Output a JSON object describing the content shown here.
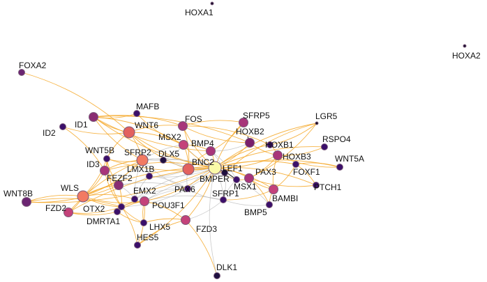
{
  "graph": {
    "edge_colors": {
      "primary": "#f5a623",
      "secondary": "#bdbdbd"
    },
    "nodes": [
      {
        "id": "HOXA1",
        "label": "HOXA1",
        "color": "#1a0c2e",
        "size": "tiny"
      },
      {
        "id": "HOXA2",
        "label": "HOXA2",
        "color": "#1a0c2e",
        "size": "tiny"
      },
      {
        "id": "FOXA2",
        "label": "FOXA2",
        "color": "#6b2572",
        "size": "small"
      },
      {
        "id": "MAFB",
        "label": "MAFB",
        "color": "#3b0f6a",
        "size": "small"
      },
      {
        "id": "ID1",
        "label": "ID1",
        "color": "#8a2d72",
        "size": "medium"
      },
      {
        "id": "ID2",
        "label": "ID2",
        "color": "#3b0f6a",
        "size": "small"
      },
      {
        "id": "WNT6",
        "label": "WNT6",
        "color": "#e3625e",
        "size": "large"
      },
      {
        "id": "FOS",
        "label": "FOS",
        "color": "#a8357a",
        "size": "medium"
      },
      {
        "id": "SFRP5",
        "label": "SFRP5",
        "color": "#a8357a",
        "size": "medium"
      },
      {
        "id": "LGR5",
        "label": "LGR5",
        "color": "#0d0820",
        "size": "tiny"
      },
      {
        "id": "WNT5B",
        "label": "WNT5B",
        "color": "#3b0f6a",
        "size": "small"
      },
      {
        "id": "MSX2",
        "label": "MSX2",
        "color": "#c4427a",
        "size": "medium"
      },
      {
        "id": "HOXB2",
        "label": "HOXB2",
        "color": "#7a1f6a",
        "size": "medium"
      },
      {
        "id": "RSPO4",
        "label": "RSPO4",
        "color": "#3b0f6a",
        "size": "small"
      },
      {
        "id": "SFRP2",
        "label": "SFRP2",
        "color": "#f27a62",
        "size": "large"
      },
      {
        "id": "BMP4",
        "label": "BMP4",
        "color": "#a8357a",
        "size": "medium"
      },
      {
        "id": "HOXB1",
        "label": "HOXB1",
        "color": "#3b0f6a",
        "size": "small"
      },
      {
        "id": "DLX5",
        "label": "DLX5",
        "color": "#1f0f3f",
        "size": "small"
      },
      {
        "id": "HOXB3",
        "label": "HOXB3",
        "color": "#a8357a",
        "size": "medium"
      },
      {
        "id": "WNT5A",
        "label": "WNT5A",
        "color": "#3b0f6a",
        "size": "small"
      },
      {
        "id": "ID3",
        "label": "ID3",
        "color": "#a8357a",
        "size": "medium"
      },
      {
        "id": "BNC2",
        "label": "BNC2",
        "color": "#e3625e",
        "size": "large"
      },
      {
        "id": "LEF1",
        "label": "LEF1",
        "color": "#fafaa8",
        "size": "xlarge"
      },
      {
        "id": "FOXF1",
        "label": "FOXF1",
        "color": "#3b0f6a",
        "size": "small"
      },
      {
        "id": "LMX1B",
        "label": "LMX1B",
        "color": "#3b0f6a",
        "size": "small"
      },
      {
        "id": "PAX3",
        "label": "PAX3",
        "color": "#a8357a",
        "size": "medium"
      },
      {
        "id": "FEZF2",
        "label": "FEZF2",
        "color": "#8a2d72",
        "size": "medium"
      },
      {
        "id": "BMPER",
        "label": "BMPER",
        "color": "#1f0f3f",
        "size": "small"
      },
      {
        "id": "PTCH1",
        "label": "PTCH1",
        "color": "#3b0f6a",
        "size": "small"
      },
      {
        "id": "PAX6",
        "label": "PAX6",
        "color": "#3b0f6a",
        "size": "small"
      },
      {
        "id": "MSX1",
        "label": "MSX1",
        "color": "#3b0f6a",
        "size": "small"
      },
      {
        "id": "WNT8B",
        "label": "WNT8B",
        "color": "#6b2572",
        "size": "medium"
      },
      {
        "id": "WLS",
        "label": "WLS",
        "color": "#f27a62",
        "size": "large"
      },
      {
        "id": "EMX2",
        "label": "EMX2",
        "color": "#3b0f6a",
        "size": "small"
      },
      {
        "id": "BAMBI",
        "label": "BAMBI",
        "color": "#c4427a",
        "size": "medium"
      },
      {
        "id": "FZD2",
        "label": "FZD2",
        "color": "#c4427a",
        "size": "medium"
      },
      {
        "id": "OTX2",
        "label": "OTX2",
        "color": "#3b0f6a",
        "size": "small"
      },
      {
        "id": "POU3F1",
        "label": "POU3F1",
        "color": "#c4427a",
        "size": "medium"
      },
      {
        "id": "SFRP1",
        "label": "SFRP1",
        "color": "#3b0f6a",
        "size": "small"
      },
      {
        "id": "BMP5",
        "label": "BMP5",
        "color": "#3b0f6a",
        "size": "small"
      },
      {
        "id": "DMRTA1",
        "label": "DMRTA1",
        "color": "#3b0f6a",
        "size": "small"
      },
      {
        "id": "LHX5",
        "label": "LHX5",
        "color": "#3b0f6a",
        "size": "small"
      },
      {
        "id": "FZD3",
        "label": "FZD3",
        "color": "#c4427a",
        "size": "medium"
      },
      {
        "id": "HES5",
        "label": "HES5",
        "color": "#3b0f6a",
        "size": "small"
      },
      {
        "id": "DLK1",
        "label": "DLK1",
        "color": "#1f0f3f",
        "size": "small"
      }
    ],
    "edges": [
      {
        "source": "FOXA2",
        "target": "WNT6",
        "kind": "primary"
      },
      {
        "source": "ID2",
        "target": "WNT6",
        "kind": "primary"
      },
      {
        "source": "ID2",
        "target": "ID3",
        "kind": "primary"
      },
      {
        "source": "ID1",
        "target": "WNT6",
        "kind": "primary"
      },
      {
        "source": "ID1",
        "target": "FOS",
        "kind": "primary"
      },
      {
        "source": "ID1",
        "target": "SFRP2",
        "kind": "primary"
      },
      {
        "source": "ID1",
        "target": "MSX2",
        "kind": "primary"
      },
      {
        "source": "ID1",
        "target": "BMP4",
        "kind": "primary"
      },
      {
        "source": "ID1",
        "target": "HOXB2",
        "kind": "primary"
      },
      {
        "source": "ID1",
        "target": "LEF1",
        "kind": "primary"
      },
      {
        "source": "MAFB",
        "target": "ID1",
        "kind": "primary"
      },
      {
        "source": "MAFB",
        "target": "MSX2",
        "kind": "primary"
      },
      {
        "source": "WNT6",
        "target": "FOS",
        "kind": "primary"
      },
      {
        "source": "WNT6",
        "target": "LEF1",
        "kind": "primary"
      },
      {
        "source": "WNT6",
        "target": "SFRP2",
        "kind": "primary"
      },
      {
        "source": "WNT6",
        "target": "WNT5B",
        "kind": "primary"
      },
      {
        "source": "WNT6",
        "target": "MSX2",
        "kind": "primary"
      },
      {
        "source": "WNT6",
        "target": "BNC2",
        "kind": "primary"
      },
      {
        "source": "FOS",
        "target": "SFRP5",
        "kind": "primary"
      },
      {
        "source": "FOS",
        "target": "HOXB2",
        "kind": "primary"
      },
      {
        "source": "FOS",
        "target": "BNC2",
        "kind": "primary"
      },
      {
        "source": "FOS",
        "target": "LEF1",
        "kind": "primary"
      },
      {
        "source": "FOS",
        "target": "HOXB1",
        "kind": "primary"
      },
      {
        "source": "SFRP5",
        "target": "LEF1",
        "kind": "primary"
      },
      {
        "source": "SFRP5",
        "target": "BMP4",
        "kind": "primary"
      },
      {
        "source": "LGR5",
        "target": "LEF1",
        "kind": "primary"
      },
      {
        "source": "LGR5",
        "target": "HOXB1",
        "kind": "primary"
      },
      {
        "source": "LGR5",
        "target": "BMPER",
        "kind": "primary"
      },
      {
        "source": "LGR5",
        "target": "PAX3",
        "kind": "primary"
      },
      {
        "source": "RSPO4",
        "target": "LEF1",
        "kind": "primary"
      },
      {
        "source": "RSPO4",
        "target": "HOXB3",
        "kind": "primary"
      },
      {
        "source": "WNT5A",
        "target": "LEF1",
        "kind": "primary"
      },
      {
        "source": "WNT5A",
        "target": "HOXB3",
        "kind": "primary"
      },
      {
        "source": "WNT5A",
        "target": "FOXF1",
        "kind": "primary"
      },
      {
        "source": "HOXB2",
        "target": "LEF1",
        "kind": "primary"
      },
      {
        "source": "HOXB2",
        "target": "HOXB3",
        "kind": "primary"
      },
      {
        "source": "HOXB1",
        "target": "HOXB3",
        "kind": "primary"
      },
      {
        "source": "HOXB1",
        "target": "LEF1",
        "kind": "primary"
      },
      {
        "source": "HOXB3",
        "target": "PAX3",
        "kind": "primary"
      },
      {
        "source": "HOXB3",
        "target": "BAMBI",
        "kind": "primary"
      },
      {
        "source": "FOXF1",
        "target": "PTCH1",
        "kind": "primary"
      },
      {
        "source": "FOXF1",
        "target": "LEF1",
        "kind": "primary"
      },
      {
        "source": "FOXF1",
        "target": "BAMBI",
        "kind": "primary"
      },
      {
        "source": "PTCH1",
        "target": "LEF1",
        "kind": "primary"
      },
      {
        "source": "PTCH1",
        "target": "PAX3",
        "kind": "primary"
      },
      {
        "source": "PAX3",
        "target": "LEF1",
        "kind": "primary"
      },
      {
        "source": "PAX3",
        "target": "MSX1",
        "kind": "primary"
      },
      {
        "source": "PAX3",
        "target": "BAMBI",
        "kind": "primary"
      },
      {
        "source": "PAX3",
        "target": "BMP5",
        "kind": "primary"
      },
      {
        "source": "BAMBI",
        "target": "LEF1",
        "kind": "primary"
      },
      {
        "source": "BAMBI",
        "target": "SFRP1",
        "kind": "primary"
      },
      {
        "source": "BAMBI",
        "target": "BMP5",
        "kind": "primary"
      },
      {
        "source": "BMP5",
        "target": "SFRP1",
        "kind": "secondary"
      },
      {
        "source": "BMP5",
        "target": "MSX1",
        "kind": "secondary"
      },
      {
        "source": "MSX1",
        "target": "LEF1",
        "kind": "primary"
      },
      {
        "source": "MSX1",
        "target": "SFRP1",
        "kind": "secondary"
      },
      {
        "source": "MSX1",
        "target": "MSX2",
        "kind": "secondary"
      },
      {
        "source": "MSX1",
        "target": "BMP4",
        "kind": "secondary"
      },
      {
        "source": "MSX2",
        "target": "BMP4",
        "kind": "primary"
      },
      {
        "source": "MSX2",
        "target": "LEF1",
        "kind": "primary"
      },
      {
        "source": "MSX2",
        "target": "BNC2",
        "kind": "primary"
      },
      {
        "source": "MSX2",
        "target": "SFRP2",
        "kind": "secondary"
      },
      {
        "source": "BMP4",
        "target": "LEF1",
        "kind": "primary"
      },
      {
        "source": "BMP4",
        "target": "BNC2",
        "kind": "primary"
      },
      {
        "source": "BMP4",
        "target": "BMPER",
        "kind": "secondary"
      },
      {
        "source": "BMP4",
        "target": "HOXB2",
        "kind": "secondary"
      },
      {
        "source": "BNC2",
        "target": "LEF1",
        "kind": "primary"
      },
      {
        "source": "BNC2",
        "target": "SFRP2",
        "kind": "secondary"
      },
      {
        "source": "BNC2",
        "target": "LMX1B",
        "kind": "secondary"
      },
      {
        "source": "BNC2",
        "target": "PAX6",
        "kind": "secondary"
      },
      {
        "source": "BNC2",
        "target": "BMPER",
        "kind": "secondary"
      },
      {
        "source": "BNC2",
        "target": "DLX5",
        "kind": "secondary"
      },
      {
        "source": "BMPER",
        "target": "LEF1",
        "kind": "primary"
      },
      {
        "source": "BMPER",
        "target": "PAX6",
        "kind": "secondary"
      },
      {
        "source": "BMPER",
        "target": "SFRP1",
        "kind": "secondary"
      },
      {
        "source": "DLX5",
        "target": "SFRP2",
        "kind": "secondary"
      },
      {
        "source": "DLX5",
        "target": "LEF1",
        "kind": "secondary"
      },
      {
        "source": "DLX5",
        "target": "MSX2",
        "kind": "secondary"
      },
      {
        "source": "SFRP2",
        "target": "LEF1",
        "kind": "secondary"
      },
      {
        "source": "SFRP2",
        "target": "ID3",
        "kind": "primary"
      },
      {
        "source": "SFRP2",
        "target": "WNT5B",
        "kind": "primary"
      },
      {
        "source": "SFRP2",
        "target": "FEZF2",
        "kind": "secondary"
      },
      {
        "source": "SFRP2",
        "target": "LMX1B",
        "kind": "secondary"
      },
      {
        "source": "SFRP2",
        "target": "EMX2",
        "kind": "secondary"
      },
      {
        "source": "SFRP2",
        "target": "WLS",
        "kind": "primary"
      },
      {
        "source": "SFRP2",
        "target": "PAX6",
        "kind": "secondary"
      },
      {
        "source": "WNT5B",
        "target": "ID3",
        "kind": "primary"
      },
      {
        "source": "WNT5B",
        "target": "LEF1",
        "kind": "primary"
      },
      {
        "source": "WNT5B",
        "target": "WLS",
        "kind": "primary"
      },
      {
        "source": "WNT5B",
        "target": "FEZF2",
        "kind": "primary"
      },
      {
        "source": "ID3",
        "target": "WLS",
        "kind": "primary"
      },
      {
        "source": "ID3",
        "target": "FEZF2",
        "kind": "primary"
      },
      {
        "source": "ID3",
        "target": "LEF1",
        "kind": "primary"
      },
      {
        "source": "ID3",
        "target": "OTX2",
        "kind": "primary"
      },
      {
        "source": "FEZF2",
        "target": "EMX2",
        "kind": "secondary"
      },
      {
        "source": "FEZF2",
        "target": "LMX1B",
        "kind": "secondary"
      },
      {
        "source": "FEZF2",
        "target": "OTX2",
        "kind": "primary"
      },
      {
        "source": "FEZF2",
        "target": "WLS",
        "kind": "primary"
      },
      {
        "source": "FEZF2",
        "target": "PAX6",
        "kind": "secondary"
      },
      {
        "source": "LMX1B",
        "target": "EMX2",
        "kind": "secondary"
      },
      {
        "source": "LMX1B",
        "target": "PAX6",
        "kind": "secondary"
      },
      {
        "source": "LMX1B",
        "target": "LEF1",
        "kind": "secondary"
      },
      {
        "source": "EMX2",
        "target": "PAX6",
        "kind": "secondary"
      },
      {
        "source": "EMX2",
        "target": "POU3F1",
        "kind": "secondary"
      },
      {
        "source": "EMX2",
        "target": "OTX2",
        "kind": "secondary"
      },
      {
        "source": "PAX6",
        "target": "POU3F1",
        "kind": "secondary"
      },
      {
        "source": "PAX6",
        "target": "LEF1",
        "kind": "secondary"
      },
      {
        "source": "PAX6",
        "target": "SFRP1",
        "kind": "secondary"
      },
      {
        "source": "WNT8B",
        "target": "WLS",
        "kind": "primary"
      },
      {
        "source": "WNT8B",
        "target": "FEZF2",
        "kind": "primary"
      },
      {
        "source": "WNT8B",
        "target": "OTX2",
        "kind": "primary"
      },
      {
        "source": "WNT8B",
        "target": "LEF1",
        "kind": "primary"
      },
      {
        "source": "WLS",
        "target": "FZD2",
        "kind": "primary"
      },
      {
        "source": "WLS",
        "target": "OTX2",
        "kind": "primary"
      },
      {
        "source": "WLS",
        "target": "EMX2",
        "kind": "primary"
      },
      {
        "source": "WLS",
        "target": "POU3F1",
        "kind": "primary"
      },
      {
        "source": "WLS",
        "target": "LEF1",
        "kind": "primary"
      },
      {
        "source": "FZD2",
        "target": "OTX2",
        "kind": "primary"
      },
      {
        "source": "FZD2",
        "target": "LEF1",
        "kind": "primary"
      },
      {
        "source": "FZD2",
        "target": "DMRTA1",
        "kind": "primary"
      },
      {
        "source": "FZD2",
        "target": "SFRP2",
        "kind": "primary"
      },
      {
        "source": "OTX2",
        "target": "DMRTA1",
        "kind": "primary"
      },
      {
        "source": "OTX2",
        "target": "POU3F1",
        "kind": "primary"
      },
      {
        "source": "OTX2",
        "target": "LHX5",
        "kind": "primary"
      },
      {
        "source": "OTX2",
        "target": "HES5",
        "kind": "primary"
      },
      {
        "source": "OTX2",
        "target": "PAX6",
        "kind": "secondary"
      },
      {
        "source": "DMRTA1",
        "target": "POU3F1",
        "kind": "primary"
      },
      {
        "source": "DMRTA1",
        "target": "LHX5",
        "kind": "primary"
      },
      {
        "source": "POU3F1",
        "target": "FZD3",
        "kind": "primary"
      },
      {
        "source": "POU3F1",
        "target": "LHX5",
        "kind": "primary"
      },
      {
        "source": "POU3F1",
        "target": "SFRP1",
        "kind": "secondary"
      },
      {
        "source": "POU3F1",
        "target": "LEF1",
        "kind": "primary"
      },
      {
        "source": "POU3F1",
        "target": "HES5",
        "kind": "primary"
      },
      {
        "source": "SFRP1",
        "target": "LEF1",
        "kind": "secondary"
      },
      {
        "source": "SFRP1",
        "target": "FZD3",
        "kind": "secondary"
      },
      {
        "source": "FZD3",
        "target": "LEF1",
        "kind": "primary"
      },
      {
        "source": "FZD3",
        "target": "DLK1",
        "kind": "primary"
      },
      {
        "source": "FZD3",
        "target": "HES5",
        "kind": "primary"
      },
      {
        "source": "LHX5",
        "target": "FZD3",
        "kind": "primary"
      },
      {
        "source": "HES5",
        "target": "LEF1",
        "kind": "primary"
      },
      {
        "source": "DLK1",
        "target": "LEF1",
        "kind": "secondary"
      },
      {
        "source": "WNT5B",
        "target": "OTX2",
        "kind": "primary"
      },
      {
        "source": "EMX2",
        "target": "LEF1",
        "kind": "secondary"
      },
      {
        "source": "BMPER",
        "target": "POU3F1",
        "kind": "secondary"
      },
      {
        "source": "HOXB3",
        "target": "LEF1",
        "kind": "primary"
      }
    ]
  }
}
